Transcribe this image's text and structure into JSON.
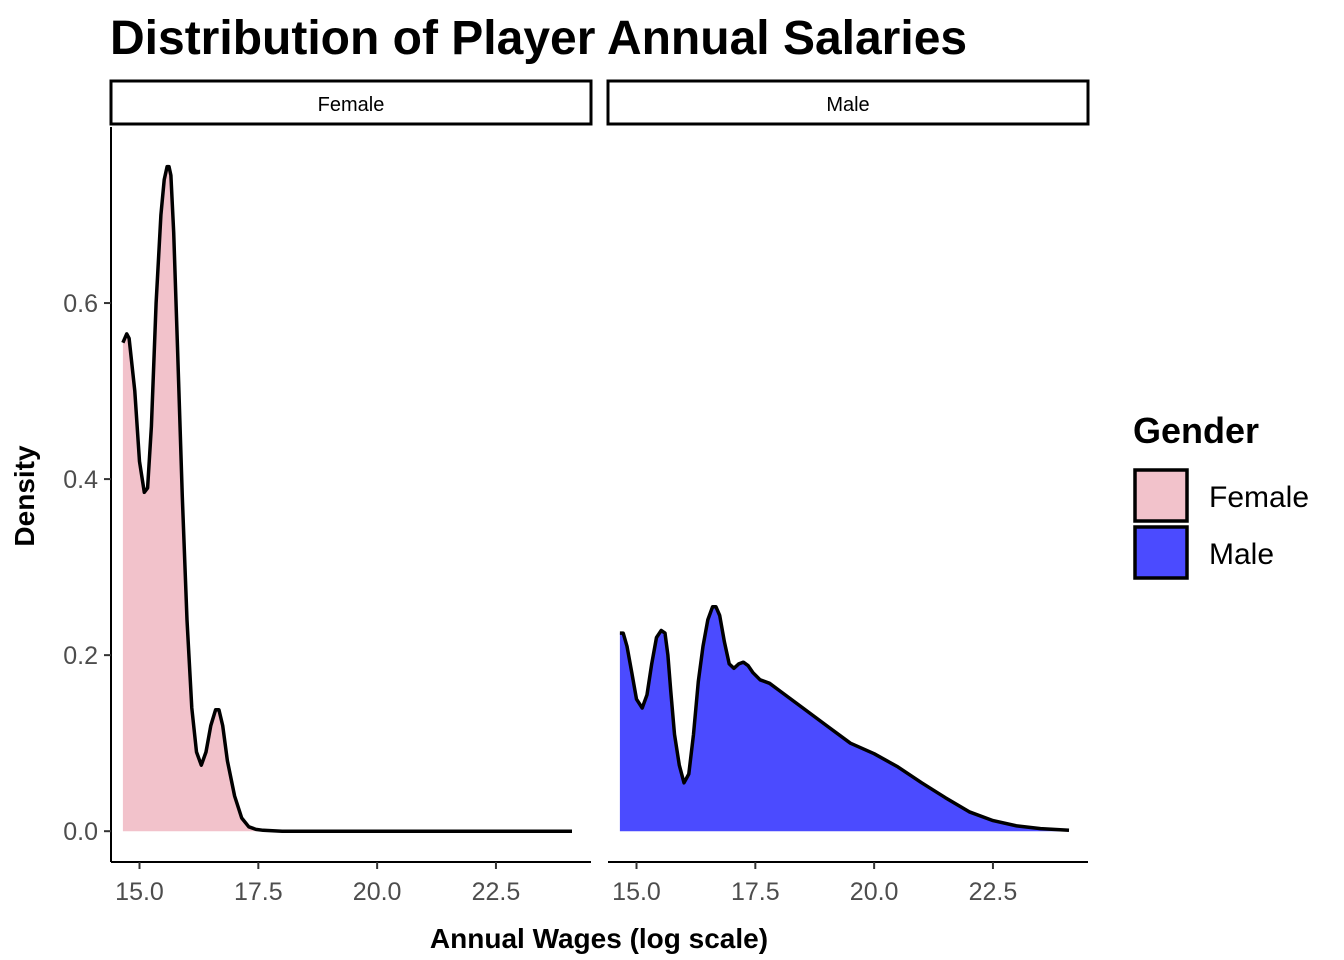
{
  "chart_data": {
    "type": "area",
    "title": "Distribution of Player Annual Salaries",
    "xlabel": "Annual Wages (log scale)",
    "ylabel": "Density",
    "xlim": [
      14.4,
      24.5
    ],
    "ylim": [
      -0.035,
      0.8
    ],
    "x_ticks": [
      15.0,
      17.5,
      20.0,
      22.5
    ],
    "x_tick_labels": [
      "15.0",
      "17.5",
      "20.0",
      "22.5"
    ],
    "y_ticks": [
      0.0,
      0.2,
      0.4,
      0.6
    ],
    "y_tick_labels": [
      "0.0",
      "0.2",
      "0.4",
      "0.6"
    ],
    "facets": [
      "Female",
      "Male"
    ],
    "legend": {
      "title": "Gender",
      "position": "right",
      "entries": [
        "Female",
        "Male"
      ]
    },
    "series": [
      {
        "name": "Female",
        "color": "#f2c2cb",
        "x": [
          14.65,
          14.73,
          14.78,
          14.9,
          15.0,
          15.1,
          15.17,
          15.25,
          15.35,
          15.45,
          15.52,
          15.58,
          15.62,
          15.66,
          15.72,
          15.8,
          15.9,
          16.0,
          16.1,
          16.2,
          16.3,
          16.4,
          16.5,
          16.6,
          16.67,
          16.75,
          16.85,
          17.0,
          17.15,
          17.3,
          17.45,
          17.6,
          18.0,
          19.0,
          20.0,
          21.0,
          22.0,
          23.0,
          24.1
        ],
        "y": [
          0.555,
          0.565,
          0.56,
          0.5,
          0.42,
          0.385,
          0.39,
          0.46,
          0.6,
          0.7,
          0.74,
          0.755,
          0.755,
          0.745,
          0.68,
          0.55,
          0.38,
          0.24,
          0.14,
          0.09,
          0.075,
          0.09,
          0.12,
          0.138,
          0.138,
          0.12,
          0.08,
          0.04,
          0.015,
          0.005,
          0.002,
          0.001,
          0.0,
          0.0,
          0.0,
          0.0,
          0.0,
          0.0,
          0.0
        ]
      },
      {
        "name": "Male",
        "color": "#4b4bff",
        "x": [
          14.65,
          14.72,
          14.8,
          14.9,
          15.0,
          15.12,
          15.22,
          15.32,
          15.42,
          15.52,
          15.6,
          15.66,
          15.72,
          15.8,
          15.9,
          16.0,
          16.1,
          16.2,
          16.3,
          16.4,
          16.5,
          16.6,
          16.67,
          16.75,
          16.85,
          16.95,
          17.05,
          17.15,
          17.25,
          17.35,
          17.45,
          17.6,
          17.8,
          18.0,
          18.5,
          19.0,
          19.5,
          20.0,
          20.5,
          21.0,
          21.5,
          22.0,
          22.5,
          23.0,
          23.5,
          24.1
        ],
        "y": [
          0.225,
          0.225,
          0.21,
          0.18,
          0.15,
          0.14,
          0.155,
          0.19,
          0.22,
          0.228,
          0.225,
          0.2,
          0.16,
          0.11,
          0.075,
          0.055,
          0.065,
          0.11,
          0.17,
          0.21,
          0.24,
          0.255,
          0.255,
          0.245,
          0.215,
          0.19,
          0.185,
          0.19,
          0.192,
          0.188,
          0.18,
          0.172,
          0.168,
          0.16,
          0.14,
          0.12,
          0.1,
          0.088,
          0.073,
          0.055,
          0.038,
          0.022,
          0.012,
          0.006,
          0.003,
          0.001
        ]
      }
    ]
  }
}
